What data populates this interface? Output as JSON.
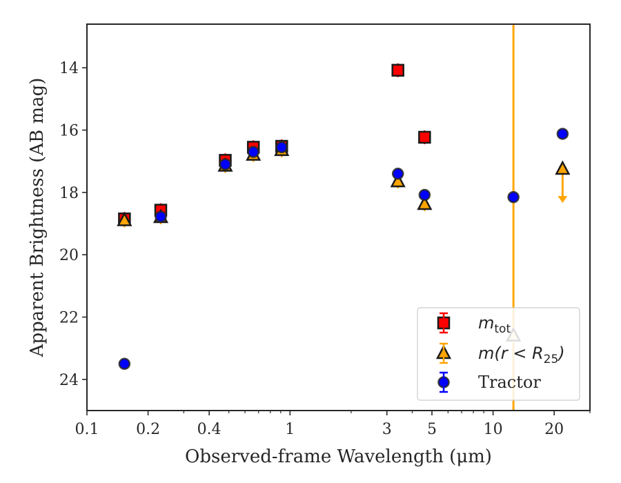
{
  "chart_data": {
    "type": "scatter",
    "xlabel": "Observed-frame Wavelength (μm)",
    "ylabel": "Apparent Brightness (AB mag)",
    "x_scale": "log",
    "xlim": [
      0.1,
      30
    ],
    "ylim": [
      25,
      12.6
    ],
    "y_inverted": true,
    "x_ticks": [
      {
        "value": 0.1,
        "label": "0.1"
      },
      {
        "value": 0.2,
        "label": "0.2"
      },
      {
        "value": 0.4,
        "label": "0.4"
      },
      {
        "value": 1,
        "label": "1"
      },
      {
        "value": 3,
        "label": "3"
      },
      {
        "value": 5,
        "label": "5"
      },
      {
        "value": 10,
        "label": "10"
      },
      {
        "value": 20,
        "label": "20"
      }
    ],
    "y_ticks": [
      {
        "value": 14,
        "label": "14"
      },
      {
        "value": 16,
        "label": "16"
      },
      {
        "value": 18,
        "label": "18"
      },
      {
        "value": 20,
        "label": "20"
      },
      {
        "value": 22,
        "label": "22"
      },
      {
        "value": 24,
        "label": "24"
      }
    ],
    "vertical_line": {
      "x": 12.6,
      "color": "#FFA500"
    },
    "legend_position": "lower right",
    "series": [
      {
        "name": "m_tot",
        "legend_main": "m",
        "legend_sub": "tot",
        "marker": "square",
        "color": "#FF0000",
        "errorbar_color": "#FF0000",
        "points": [
          {
            "x": 0.153,
            "y": 18.85
          },
          {
            "x": 0.231,
            "y": 18.57
          },
          {
            "x": 0.48,
            "y": 16.97
          },
          {
            "x": 0.66,
            "y": 16.55
          },
          {
            "x": 0.91,
            "y": 16.52
          },
          {
            "x": 3.4,
            "y": 14.08
          },
          {
            "x": 4.6,
            "y": 16.23
          }
        ]
      },
      {
        "name": "m(r < R25)",
        "legend_main": "m(r < R",
        "legend_sub": "25",
        "legend_end": ")",
        "marker": "triangle",
        "color": "#FFA500",
        "errorbar_color": "#FFA500",
        "points": [
          {
            "x": 0.153,
            "y": 18.9
          },
          {
            "x": 0.231,
            "y": 18.8
          },
          {
            "x": 0.48,
            "y": 17.15
          },
          {
            "x": 0.66,
            "y": 16.8
          },
          {
            "x": 0.91,
            "y": 16.65
          },
          {
            "x": 3.4,
            "y": 17.65
          },
          {
            "x": 4.6,
            "y": 18.38
          },
          {
            "x": 12.6,
            "y": 22.6
          },
          {
            "x": 22.0,
            "y": 17.25,
            "upper_limit": true,
            "limit_to": 18.25
          }
        ]
      },
      {
        "name": "Tractor",
        "legend_main": "Tractor",
        "marker": "circle",
        "color": "#0000FF",
        "errorbar_color": "#0000FF",
        "points": [
          {
            "x": 0.153,
            "y": 23.5
          },
          {
            "x": 0.231,
            "y": 18.78
          },
          {
            "x": 0.48,
            "y": 17.1
          },
          {
            "x": 0.66,
            "y": 16.7
          },
          {
            "x": 0.91,
            "y": 16.55
          },
          {
            "x": 3.4,
            "y": 17.4
          },
          {
            "x": 4.6,
            "y": 18.08
          },
          {
            "x": 12.6,
            "y": 18.15
          },
          {
            "x": 22.0,
            "y": 16.12
          }
        ]
      }
    ]
  }
}
